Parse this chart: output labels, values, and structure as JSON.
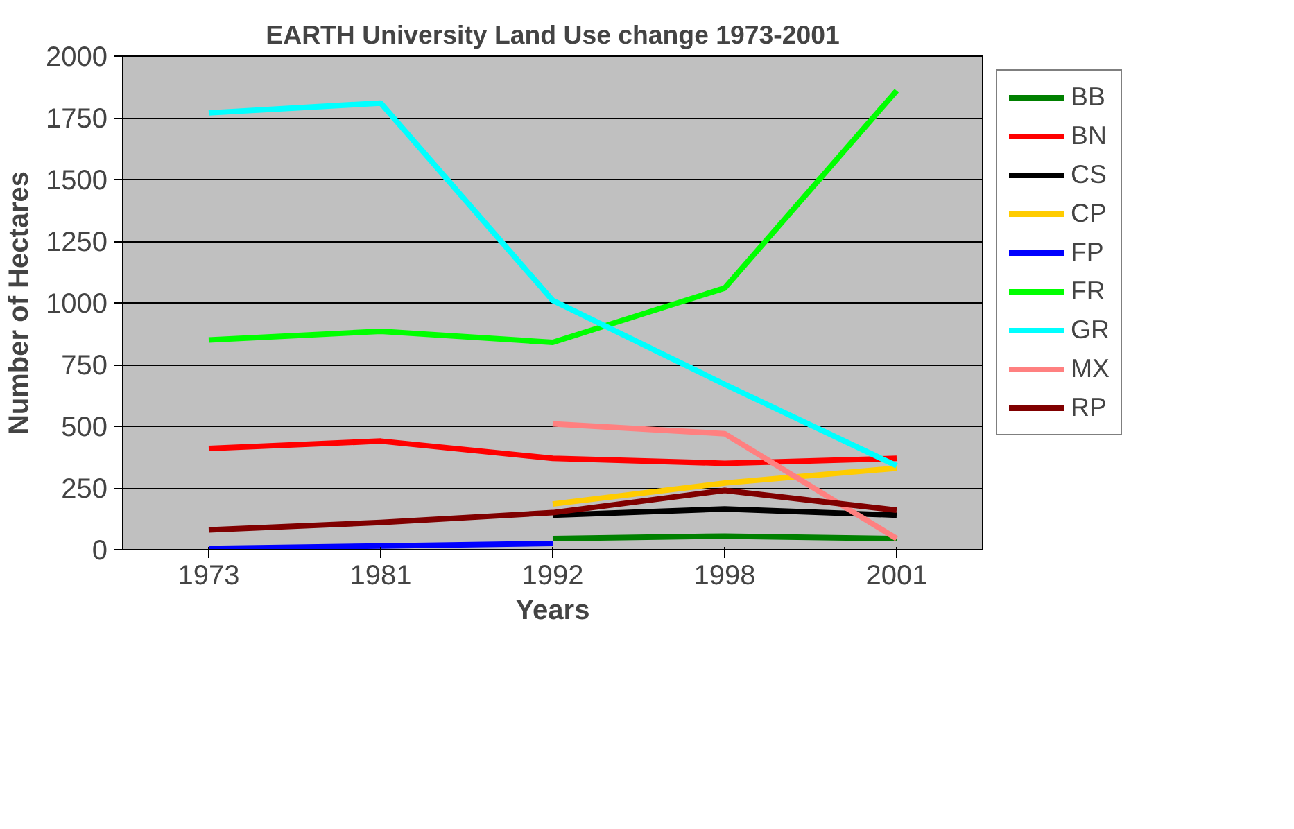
{
  "chart_data": {
    "type": "line",
    "title": "EARTH University Land Use change 1973-2001",
    "xlabel": "Years",
    "ylabel": "Number of Hectares",
    "categories": [
      "1973",
      "1981",
      "1992",
      "1998",
      "2001"
    ],
    "series": [
      {
        "name": "BB",
        "color": "#008000",
        "values": [
          null,
          null,
          45,
          55,
          45
        ]
      },
      {
        "name": "BN",
        "color": "#ff0000",
        "values": [
          410,
          440,
          370,
          350,
          370
        ]
      },
      {
        "name": "CS",
        "color": "#000000",
        "values": [
          null,
          null,
          140,
          165,
          140
        ]
      },
      {
        "name": "CP",
        "color": "#ffcc00",
        "values": [
          null,
          null,
          185,
          270,
          330
        ]
      },
      {
        "name": "FP",
        "color": "#0000ff",
        "values": [
          5,
          15,
          25,
          null,
          null
        ]
      },
      {
        "name": "FR",
        "color": "#00ff00",
        "values": [
          850,
          885,
          840,
          1060,
          1860
        ]
      },
      {
        "name": "GR",
        "color": "#00ffff",
        "values": [
          1770,
          1810,
          1010,
          670,
          340
        ]
      },
      {
        "name": "MX",
        "color": "#ff8080",
        "values": [
          null,
          null,
          510,
          470,
          45
        ]
      },
      {
        "name": "RP",
        "color": "#800000",
        "values": [
          80,
          110,
          150,
          240,
          160
        ]
      }
    ],
    "ylim": [
      0,
      2000
    ],
    "yticks": [
      0,
      250,
      500,
      750,
      1000,
      1250,
      1500,
      1750,
      2000
    ],
    "grid": "y",
    "legend": "right",
    "marker": "none",
    "line_style": "solid"
  }
}
